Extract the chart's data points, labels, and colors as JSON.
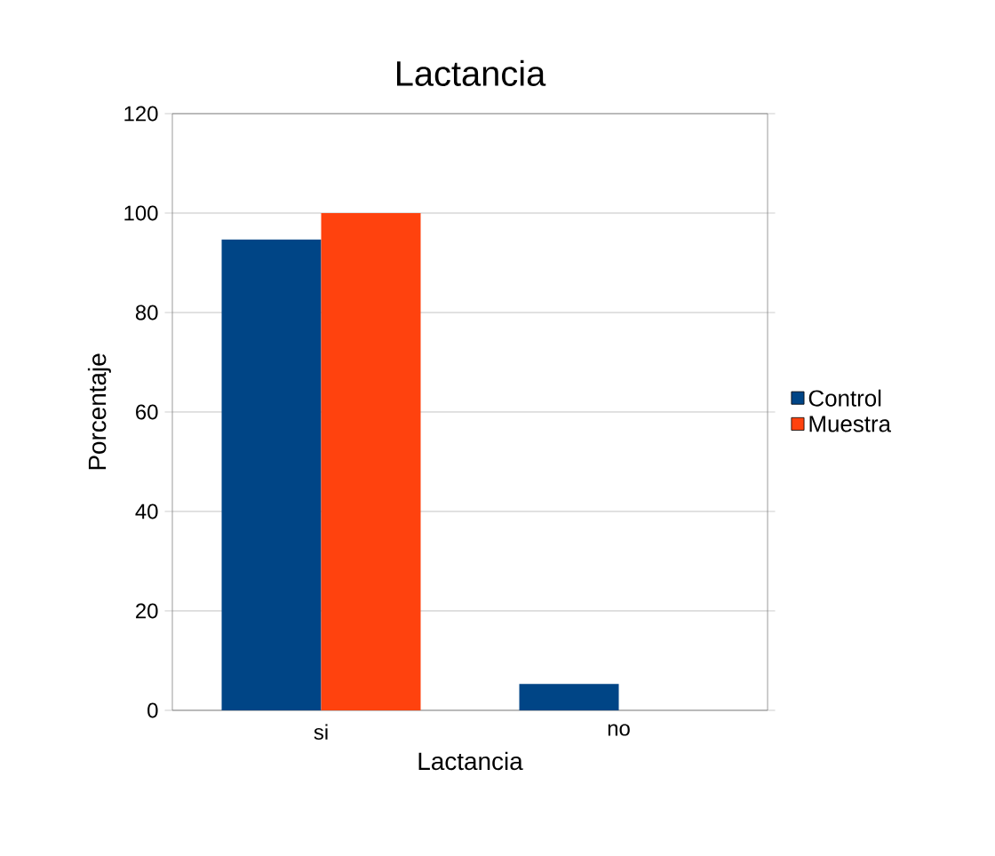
{
  "chart_data": {
    "type": "bar",
    "title": "Lactancia",
    "xlabel": "Lactancia",
    "ylabel": "Porcentaje",
    "categories": [
      "si",
      "no"
    ],
    "series": [
      {
        "name": "Control",
        "color": "#004586",
        "values": [
          94.7,
          5.3
        ]
      },
      {
        "name": "Muestra",
        "color": "#ff420e",
        "values": [
          100,
          0
        ]
      }
    ],
    "ylim": [
      0,
      120
    ],
    "yticks": [
      0,
      20,
      40,
      60,
      80,
      100,
      120
    ],
    "grid": "y",
    "legend": "right"
  }
}
